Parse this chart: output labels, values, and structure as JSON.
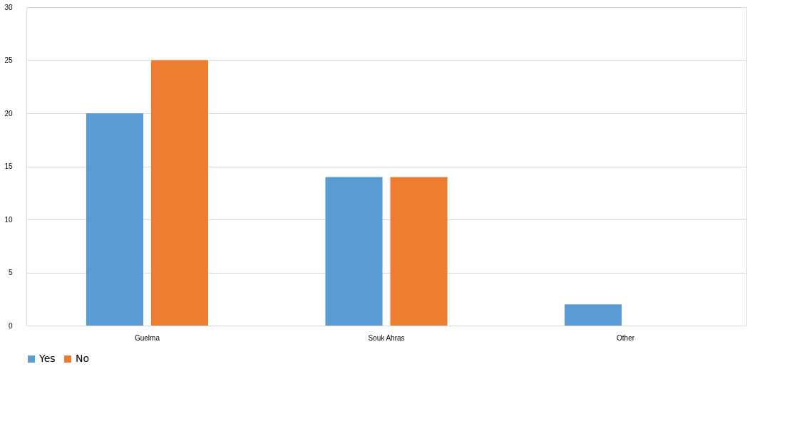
{
  "chart_data": {
    "type": "bar",
    "categories": [
      "Guelma",
      "Souk Ahras",
      "Other"
    ],
    "series": [
      {
        "name": "Yes",
        "color": "#5b9bd5",
        "values": [
          20,
          14,
          2
        ]
      },
      {
        "name": "No",
        "color": "#ed7d31",
        "values": [
          25,
          14,
          0
        ]
      }
    ],
    "ylim": [
      0,
      30
    ],
    "yticks": [
      0,
      5,
      10,
      15,
      20,
      25,
      30
    ],
    "grid": "y",
    "legend": "bottom"
  }
}
